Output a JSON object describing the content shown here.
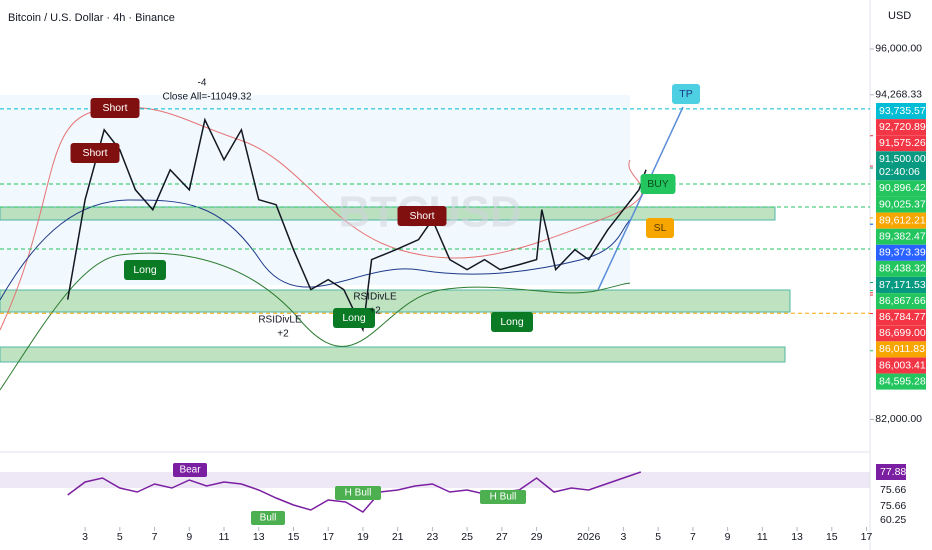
{
  "chart_data": [
    {
      "type": "line",
      "title": "Bitcoin / U.S. Dollar · 4h · Binance",
      "currency": "USD",
      "watermark": "BTCUSD",
      "x": [
        2,
        3,
        4.1,
        5,
        5.9,
        6.9,
        7.9,
        9,
        9.9,
        11,
        12,
        13,
        14,
        15,
        16,
        17,
        17.9,
        19,
        19.5,
        20.9,
        22.2,
        23,
        24,
        25,
        26,
        26.9,
        28,
        29,
        29.3,
        30.1,
        31.2,
        32,
        33.1,
        34,
        34.9,
        35.3
      ],
      "series": [
        {
          "name": "BTCUSD",
          "color": "#131722",
          "values": [
            86528,
            90302,
            92943,
            92189,
            90679,
            89925,
            91434,
            90679,
            93321,
            91811,
            92943,
            90302,
            90113,
            88415,
            86905,
            87283,
            86905,
            85395,
            88038,
            88415,
            88792,
            89547,
            88038,
            87660,
            88038,
            87660,
            87849,
            88038,
            89925,
            87660,
            88415,
            88038,
            89170,
            89925,
            90679,
            91434
          ]
        }
      ],
      "xlim": [
        -1.9,
        48.2
      ],
      "xticks": [
        3,
        5,
        7,
        9,
        11,
        13,
        15,
        17,
        19,
        21,
        23,
        25,
        27,
        29,
        {
          "value": 32,
          "label": "2026"
        },
        {
          "value": 34,
          "label": "3"
        },
        {
          "value": 36,
          "label": "5"
        },
        {
          "value": 38,
          "label": "7"
        },
        {
          "value": 40,
          "label": "9"
        },
        {
          "value": 42,
          "label": "11"
        },
        {
          "value": 44,
          "label": "13"
        },
        {
          "value": 46,
          "label": "15"
        },
        {
          "value": 48,
          "label": "17"
        }
      ],
      "ylim": [
        81600,
        97850
      ],
      "yticks": [
        {
          "value": 96000,
          "label": "96,000.00"
        },
        {
          "value": 94268.33,
          "label": "94,268.33"
        },
        {
          "value": 82000,
          "label": "82,000.00"
        }
      ],
      "price_labels": [
        {
          "value": 93735.57,
          "label": "93,735.57",
          "color": "#00bcd4",
          "dashed": true
        },
        {
          "value": 92720.89,
          "label": "92,720.89",
          "color": "#f23645"
        },
        {
          "value": 91575.26,
          "label": "91,575.26",
          "color": "#f23645"
        },
        {
          "value": 91500,
          "label": "91,500.00",
          "color": "#089981"
        },
        {
          "value": 90896.42,
          "label": "90,896.42",
          "color": "#22c55e",
          "dashed": true
        },
        {
          "value": 90025.37,
          "label": "90,025.37",
          "color": "#22c55e",
          "dashed": true
        },
        {
          "value": 89612.21,
          "label": "89,612.21",
          "color": "#f7a600"
        },
        {
          "value": 89382.47,
          "label": "89,382.47",
          "color": "#22c55e"
        },
        {
          "value": 89373.39,
          "label": "89,373.39",
          "color": "#2962ff"
        },
        {
          "value": 88438.32,
          "label": "88,438.32",
          "color": "#22c55e",
          "dashed": true
        },
        {
          "value": 87171.53,
          "label": "87,171.53",
          "color": "#089981"
        },
        {
          "value": 86867.66,
          "label": "86,867.66",
          "color": "#22c55e"
        },
        {
          "value": 86784.77,
          "label": "86,784.77",
          "color": "#f23645"
        },
        {
          "value": 86699,
          "label": "86,699.00",
          "color": "#f23645"
        },
        {
          "value": 86011.83,
          "label": "86,011.83",
          "color": "#f7a600",
          "dashed": true
        },
        {
          "value": 86003.41,
          "label": "86,003.41",
          "color": "#f23645"
        },
        {
          "value": 84595.28,
          "label": "84,595.28",
          "color": "#22c55e"
        }
      ],
      "countdown": "02:40:06",
      "annotations": [
        {
          "text": "Short",
          "color": "#801010"
        },
        {
          "text": "Short",
          "color": "#801010"
        },
        {
          "text": "Short",
          "color": "#801010"
        },
        {
          "text": "Long",
          "color": "#0b7a24"
        },
        {
          "text": "Long",
          "color": "#0b7a24"
        },
        {
          "text": "Long",
          "color": "#0b7a24"
        },
        {
          "text": "Close All=-11049.32"
        },
        {
          "text": "-4"
        },
        {
          "text": "RSIDivLE"
        },
        {
          "text": "+2"
        },
        {
          "text": "RSIDivLE"
        },
        {
          "text": "+2"
        },
        {
          "text": "BUY",
          "color": "#22c55e"
        },
        {
          "text": "SL",
          "color": "#f7a600"
        },
        {
          "text": "TP",
          "color": "#4dd0e1"
        }
      ]
    },
    {
      "type": "line",
      "x": [
        2,
        3,
        4,
        5,
        6,
        7,
        8,
        9,
        10,
        11,
        12,
        13,
        14,
        15,
        16,
        17,
        18,
        19,
        20,
        21,
        22,
        23,
        24,
        25,
        26,
        27,
        28,
        29,
        30,
        31,
        32,
        33,
        34,
        35
      ],
      "series": [
        {
          "name": "RSI",
          "color": "#7b1fa2",
          "values": [
            55,
            68,
            72,
            62,
            58,
            66,
            62,
            70,
            64,
            68,
            66,
            60,
            52,
            45,
            40,
            50,
            48,
            38,
            58,
            60,
            64,
            66,
            58,
            60,
            56,
            58,
            60,
            72,
            58,
            62,
            60,
            66,
            72,
            78
          ]
        }
      ],
      "ylim": [
        25,
        95
      ],
      "rsi_labels": [
        {
          "text": "77.88",
          "color": "#7b1fa2"
        },
        {
          "text": "75.66"
        },
        {
          "text": "75.66"
        },
        {
          "text": "60.25"
        }
      ],
      "annotations": [
        {
          "text": "Bear",
          "color": "#7b1fa2"
        },
        {
          "text": "H Bull",
          "color": "#4caf50"
        },
        {
          "text": "H Bull",
          "color": "#4caf50"
        },
        {
          "text": "Bull",
          "color": "#4caf50"
        }
      ]
    }
  ]
}
